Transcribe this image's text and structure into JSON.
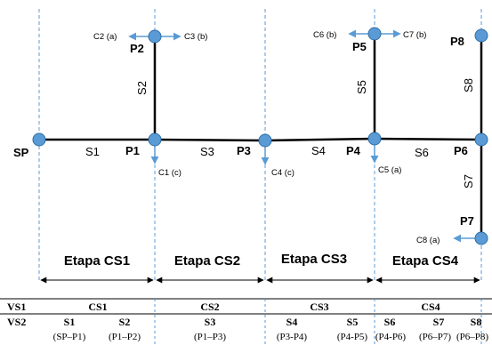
{
  "nodes": {
    "SP": "SP",
    "P1": "P1",
    "P2": "P2",
    "P3": "P3",
    "P4": "P4",
    "P5": "P5",
    "P6": "P6",
    "P7": "P7",
    "P8": "P8"
  },
  "segments": {
    "S1": "S1",
    "S2": "S2",
    "S3": "S3",
    "S4": "S4",
    "S5": "S5",
    "S6": "S6",
    "S7": "S7",
    "S8": "S8"
  },
  "consumers": {
    "C1": "C1 (c)",
    "C2": "C2 (a)",
    "C3": "C3 (b)",
    "C4": "C4 (c)",
    "C5": "C5 (a)",
    "C6": "C6 (b)",
    "C7": "C7 (b)",
    "C8": "C8 (a)"
  },
  "stages": [
    "Etapa CS1",
    "Etapa CS2",
    "Etapa CS3",
    "Etapa CS4"
  ],
  "table": {
    "row1_label": "VS1",
    "row2_label": "VS2",
    "cs": [
      "CS1",
      "CS2",
      "CS3",
      "CS4"
    ],
    "sections": [
      "S1",
      "S2",
      "S3",
      "S4",
      "S5",
      "S6",
      "S7",
      "S8"
    ],
    "ranges": [
      "(SP–P1)",
      "(P1–P2)",
      "(P1–P3)",
      "(P3-P4)",
      "(P4-P5)",
      "(P4-P6)",
      "(P6–P7)",
      "(P6–P8)"
    ]
  },
  "colors": {
    "node_fill": "#5b9bd5",
    "node_stroke": "#2e6fa7",
    "arrow": "#5b9bd5",
    "dashed": "#5b9bd5",
    "pipe": "#000000"
  }
}
